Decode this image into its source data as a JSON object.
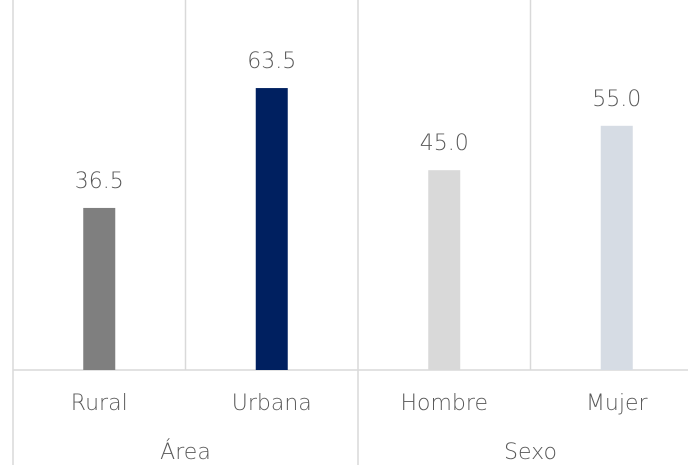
{
  "chart_data": {
    "type": "bar",
    "categories": [
      "Rural",
      "Urbana",
      "Hombre",
      "Mujer"
    ],
    "values": [
      36.5,
      63.5,
      45.0,
      55.0
    ],
    "value_labels": [
      "36.5",
      "63.5",
      "45.0",
      "55.0"
    ],
    "colors": [
      "#7f7f7f",
      "#002060",
      "#d9d9d9",
      "#d6dce4"
    ],
    "groups": [
      {
        "name": "Área",
        "size": 2
      },
      {
        "name": "Sexo",
        "size": 2
      }
    ]
  }
}
